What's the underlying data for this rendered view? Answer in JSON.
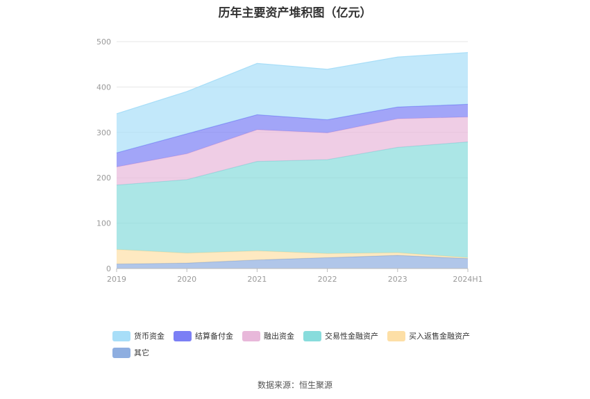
{
  "chart_data": {
    "type": "area",
    "stacked": true,
    "title": "历年主要资产堆积图（亿元）",
    "categories": [
      "2019",
      "2020",
      "2021",
      "2022",
      "2023",
      "2024H1"
    ],
    "ylim": [
      0,
      500
    ],
    "yticks": [
      "0",
      "100",
      "200",
      "300",
      "400",
      "500"
    ],
    "xlabel": "",
    "ylabel": "",
    "grid": true,
    "legend_position": "bottom",
    "series": [
      {
        "name": "其它",
        "color": "#8eaee0",
        "values": [
          10,
          12,
          19,
          24,
          29,
          22
        ]
      },
      {
        "name": "买入返售金融资产",
        "color": "#fddfa6",
        "values": [
          32,
          22,
          20,
          9,
          6,
          2
        ]
      },
      {
        "name": "交易性金融资产",
        "color": "#88dcdc",
        "values": [
          142,
          162,
          197,
          207,
          232,
          255
        ]
      },
      {
        "name": "融出资金",
        "color": "#e8b8da",
        "values": [
          40,
          57,
          70,
          59,
          63,
          55
        ]
      },
      {
        "name": "结算备付金",
        "color": "#7b7ff5",
        "values": [
          31,
          44,
          33,
          29,
          26,
          28
        ]
      },
      {
        "name": "货币资金",
        "color": "#a8def8",
        "values": [
          86,
          93,
          113,
          111,
          110,
          114
        ]
      }
    ]
  },
  "legend": [
    {
      "name": "货币资金",
      "color": "#a8def8"
    },
    {
      "name": "结算备付金",
      "color": "#7b7ff5"
    },
    {
      "name": "融出资金",
      "color": "#e8b8da"
    },
    {
      "name": "交易性金融资产",
      "color": "#88dcdc"
    },
    {
      "name": "买入返售金融资产",
      "color": "#fddfa6"
    },
    {
      "name": "其它",
      "color": "#8eaee0"
    }
  ],
  "source": "数据来源：恒生聚源"
}
